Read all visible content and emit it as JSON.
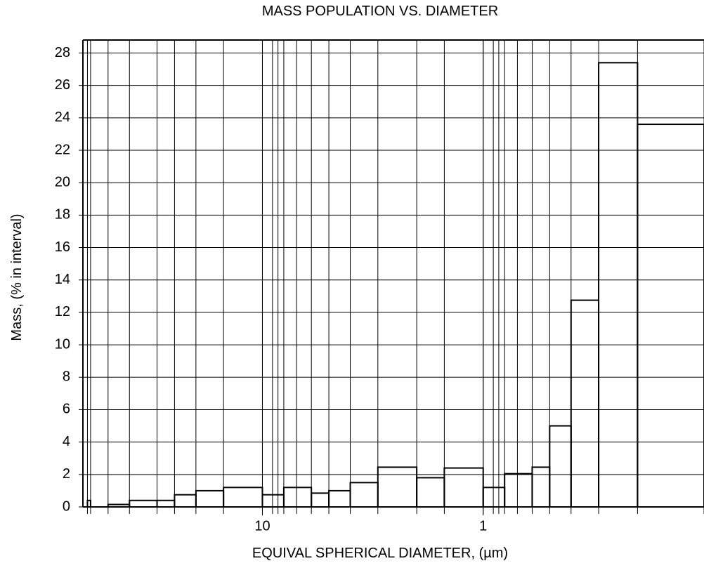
{
  "chart_data": {
    "type": "histogram",
    "title": "MASS POPULATION VS. DIAMETER",
    "x_label": "EQUIVAL SPHERICAL DIAMETER, (µm)",
    "y_label": "Mass, (% in interval)",
    "bins": [
      62,
      60,
      50,
      40,
      30,
      25,
      20,
      15,
      10,
      8,
      6,
      5,
      4,
      3,
      2,
      1.5,
      1,
      0.8,
      0.6,
      0.5,
      0.4,
      0.3,
      0.2,
      0.1
    ],
    "counts": [
      0.4,
      0,
      0.15,
      0.4,
      0.4,
      0.75,
      1.0,
      1.2,
      0.75,
      1.2,
      0.85,
      1.0,
      1.5,
      2.45,
      1.8,
      2.4,
      1.2,
      2.05,
      2.45,
      5.0,
      12.75,
      27.4,
      23.6
    ],
    "x_log": true,
    "x_reversed": true,
    "xlim": [
      65,
      0.1
    ],
    "xticks": [
      10,
      1
    ],
    "xgrid": [
      9,
      8.5,
      7,
      0.9,
      0.85,
      0.7
    ],
    "ylim": [
      0,
      28.8
    ],
    "yticks": [
      0,
      2,
      4,
      6,
      8,
      10,
      12,
      14,
      16,
      18,
      20,
      22,
      24,
      26,
      28
    ],
    "grid": true,
    "color": "#000000"
  }
}
